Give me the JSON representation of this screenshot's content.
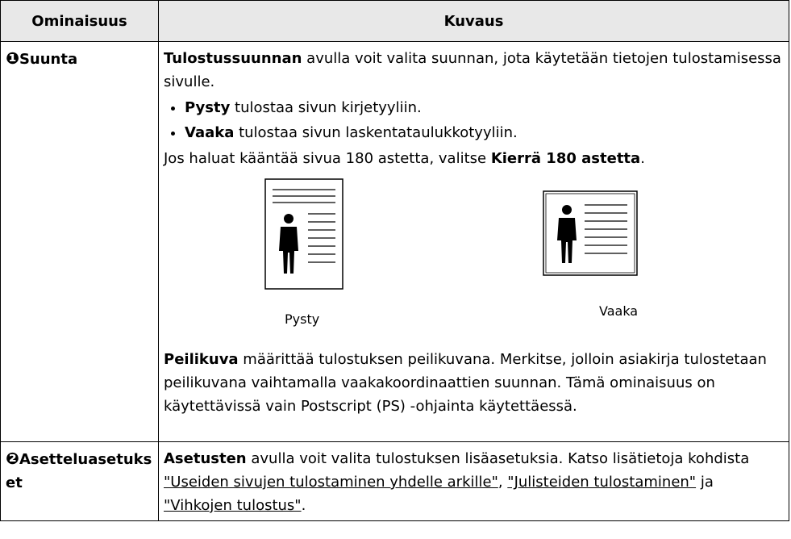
{
  "table": {
    "headers": [
      "Ominaisuus",
      "Kuvaus"
    ],
    "rows": [
      {
        "marker": "❶",
        "feature": "Suunta",
        "intro": [
          "Tulostussuunnan",
          " avulla voit valita suunnan, jota käytetään tietojen tulostamisessa sivulle."
        ],
        "bullets": [
          [
            "Pysty",
            " tulostaa sivun kirjetyyliin."
          ],
          [
            "Vaaka",
            " tulostaa sivun laskentataulukkotyyliin."
          ]
        ],
        "rotate": [
          "Jos haluat kääntää sivua 180 astetta, valitse ",
          "Kierrä 180 astetta",
          "."
        ],
        "images": [
          "Pysty",
          "Vaaka"
        ],
        "mirror": [
          "Peilikuva",
          " määrittää tulostuksen peilikuvana. Merkitse, jolloin asiakirja tulostetaan peilikuvana vaihtamalla vaakakoordinaattien suunnan. Tämä ominaisuus on käytettävissä vain Postscript (PS) -ohjainta käytettäessä."
        ]
      },
      {
        "marker": "❷",
        "feature": "Asetteluasetukset",
        "text": [
          "Asetusten",
          " avulla voit valita tulostuksen lisäasetuksia. Katso lisätietoja kohdista ",
          "\"Useiden sivujen tulostaminen yhdelle arkille\"",
          ", ",
          "\"Julisteiden tulostaminen\"",
          " ja ",
          "\"Vihkojen tulostus\"",
          "."
        ]
      }
    ]
  }
}
